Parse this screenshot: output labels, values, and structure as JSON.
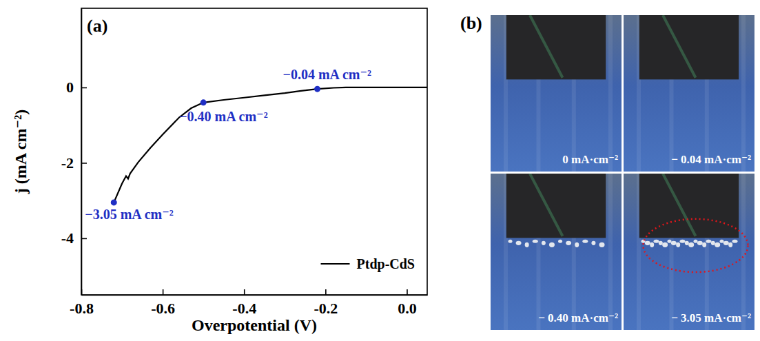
{
  "chart_data": {
    "type": "line",
    "panel": "(a)",
    "x_label": "Overpotential (V)",
    "y_label": "j (mA cm⁻²)",
    "x": [
      -0.72,
      -0.7,
      -0.69,
      -0.685,
      -0.68,
      -0.66,
      -0.63,
      -0.6,
      -0.56,
      -0.53,
      -0.5,
      -0.45,
      -0.4,
      -0.35,
      -0.3,
      -0.26,
      -0.22,
      -0.18,
      -0.15,
      -0.1,
      -0.05,
      0.0,
      0.05
    ],
    "series": [
      {
        "name": "Ptdp-CdS",
        "color": "#000000",
        "values": [
          -3.05,
          -2.55,
          -2.35,
          -2.42,
          -2.28,
          -1.98,
          -1.6,
          -1.25,
          -0.8,
          -0.55,
          -0.4,
          -0.33,
          -0.27,
          -0.21,
          -0.15,
          -0.09,
          -0.04,
          -0.01,
          0,
          0,
          0,
          0,
          0
        ]
      }
    ],
    "xlim": [
      -0.8,
      0.05
    ],
    "xticks": [
      {
        "value": -0.8,
        "label": "-0.8"
      },
      {
        "value": -0.6,
        "label": "-0.6"
      },
      {
        "value": -0.4,
        "label": "-0.4"
      },
      {
        "value": -0.2,
        "label": "-0.2"
      },
      {
        "value": 0,
        "label": "0.0"
      }
    ],
    "ylim": [
      -5.5,
      2.1
    ],
    "yticks": [
      -4,
      -2,
      0
    ],
    "grid": false,
    "legend": "lower right",
    "annotations": [
      {
        "text": "−0.04 mA cm⁻²",
        "x": -0.22,
        "y": -0.04,
        "color": "#1f2fc4"
      },
      {
        "text": "−0.40 mA cm⁻²",
        "x": -0.5,
        "y": -0.4,
        "color": "#1f2fc4"
      },
      {
        "text": "−3.05 mA cm⁻²",
        "x": -0.72,
        "y": -3.05,
        "color": "#1f2fc4"
      }
    ]
  },
  "panel_b": {
    "panel": "(b)",
    "frames": [
      {
        "label": "0 mA·cm⁻²"
      },
      {
        "label": "− 0.04 mA·cm⁻²"
      },
      {
        "label": "− 0.40 mA·cm⁻²"
      },
      {
        "label": "− 3.05 mA·cm⁻²"
      }
    ]
  }
}
